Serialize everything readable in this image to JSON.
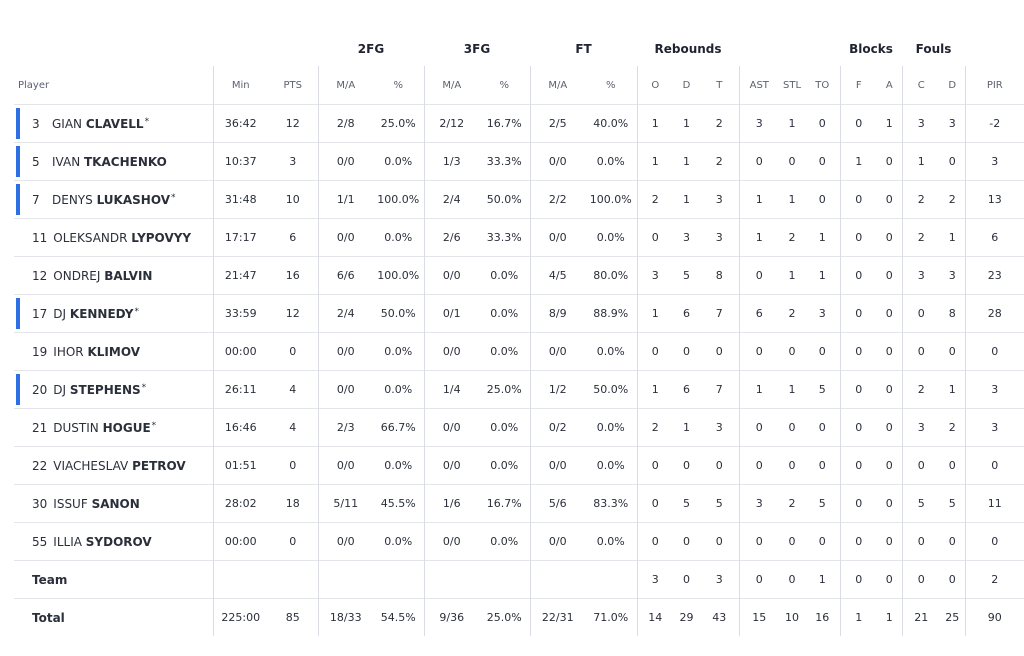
{
  "header": {
    "groups": {
      "fg2": "2FG",
      "fg3": "3FG",
      "ft": "FT",
      "rebounds": "Rebounds",
      "blocks": "Blocks",
      "fouls": "Fouls"
    },
    "sub": {
      "player": "Player",
      "min": "Min",
      "pts": "PTS",
      "fg2_ma": "M/A",
      "fg2_pct": "%",
      "fg3_ma": "M/A",
      "fg3_pct": "%",
      "ft_ma": "M/A",
      "ft_pct": "%",
      "reb_o": "O",
      "reb_d": "D",
      "reb_t": "T",
      "ast": "AST",
      "stl": "STL",
      "to": "TO",
      "blk_f": "F",
      "blk_a": "A",
      "foul_c": "C",
      "foul_d": "D",
      "pir": "PIR"
    }
  },
  "accent_color": "#2f6fe4",
  "players": [
    {
      "num": "3",
      "first": "GIAN",
      "last": "CLAVELL",
      "star": "*",
      "starter": true,
      "min": "36:42",
      "pts": "12",
      "fg2_ma": "2/8",
      "fg2_pct": "25.0%",
      "fg3_ma": "2/12",
      "fg3_pct": "16.7%",
      "ft_ma": "2/5",
      "ft_pct": "40.0%",
      "reb_o": "1",
      "reb_d": "1",
      "reb_t": "2",
      "ast": "3",
      "stl": "1",
      "to": "0",
      "blk_f": "0",
      "blk_a": "1",
      "foul_c": "3",
      "foul_d": "3",
      "pir": "-2"
    },
    {
      "num": "5",
      "first": "IVAN",
      "last": "TKACHENKO",
      "star": "",
      "starter": true,
      "min": "10:37",
      "pts": "3",
      "fg2_ma": "0/0",
      "fg2_pct": "0.0%",
      "fg3_ma": "1/3",
      "fg3_pct": "33.3%",
      "ft_ma": "0/0",
      "ft_pct": "0.0%",
      "reb_o": "1",
      "reb_d": "1",
      "reb_t": "2",
      "ast": "0",
      "stl": "0",
      "to": "0",
      "blk_f": "1",
      "blk_a": "0",
      "foul_c": "1",
      "foul_d": "0",
      "pir": "3"
    },
    {
      "num": "7",
      "first": "DENYS",
      "last": "LUKASHOV",
      "star": "*",
      "starter": true,
      "min": "31:48",
      "pts": "10",
      "fg2_ma": "1/1",
      "fg2_pct": "100.0%",
      "fg3_ma": "2/4",
      "fg3_pct": "50.0%",
      "ft_ma": "2/2",
      "ft_pct": "100.0%",
      "reb_o": "2",
      "reb_d": "1",
      "reb_t": "3",
      "ast": "1",
      "stl": "1",
      "to": "0",
      "blk_f": "0",
      "blk_a": "0",
      "foul_c": "2",
      "foul_d": "2",
      "pir": "13"
    },
    {
      "num": "11",
      "first": "OLEKSANDR",
      "last": "LYPOVYY",
      "star": "",
      "starter": false,
      "min": "17:17",
      "pts": "6",
      "fg2_ma": "0/0",
      "fg2_pct": "0.0%",
      "fg3_ma": "2/6",
      "fg3_pct": "33.3%",
      "ft_ma": "0/0",
      "ft_pct": "0.0%",
      "reb_o": "0",
      "reb_d": "3",
      "reb_t": "3",
      "ast": "1",
      "stl": "2",
      "to": "1",
      "blk_f": "0",
      "blk_a": "0",
      "foul_c": "2",
      "foul_d": "1",
      "pir": "6"
    },
    {
      "num": "12",
      "first": "ONDREJ",
      "last": "BALVIN",
      "star": "",
      "starter": false,
      "min": "21:47",
      "pts": "16",
      "fg2_ma": "6/6",
      "fg2_pct": "100.0%",
      "fg3_ma": "0/0",
      "fg3_pct": "0.0%",
      "ft_ma": "4/5",
      "ft_pct": "80.0%",
      "reb_o": "3",
      "reb_d": "5",
      "reb_t": "8",
      "ast": "0",
      "stl": "1",
      "to": "1",
      "blk_f": "0",
      "blk_a": "0",
      "foul_c": "3",
      "foul_d": "3",
      "pir": "23"
    },
    {
      "num": "17",
      "first": "DJ",
      "last": "KENNEDY",
      "star": "*",
      "starter": true,
      "min": "33:59",
      "pts": "12",
      "fg2_ma": "2/4",
      "fg2_pct": "50.0%",
      "fg3_ma": "0/1",
      "fg3_pct": "0.0%",
      "ft_ma": "8/9",
      "ft_pct": "88.9%",
      "reb_o": "1",
      "reb_d": "6",
      "reb_t": "7",
      "ast": "6",
      "stl": "2",
      "to": "3",
      "blk_f": "0",
      "blk_a": "0",
      "foul_c": "0",
      "foul_d": "8",
      "pir": "28"
    },
    {
      "num": "19",
      "first": "IHOR",
      "last": "KLIMOV",
      "star": "",
      "starter": false,
      "min": "00:00",
      "pts": "0",
      "fg2_ma": "0/0",
      "fg2_pct": "0.0%",
      "fg3_ma": "0/0",
      "fg3_pct": "0.0%",
      "ft_ma": "0/0",
      "ft_pct": "0.0%",
      "reb_o": "0",
      "reb_d": "0",
      "reb_t": "0",
      "ast": "0",
      "stl": "0",
      "to": "0",
      "blk_f": "0",
      "blk_a": "0",
      "foul_c": "0",
      "foul_d": "0",
      "pir": "0"
    },
    {
      "num": "20",
      "first": "DJ",
      "last": "STEPHENS",
      "star": "*",
      "starter": true,
      "min": "26:11",
      "pts": "4",
      "fg2_ma": "0/0",
      "fg2_pct": "0.0%",
      "fg3_ma": "1/4",
      "fg3_pct": "25.0%",
      "ft_ma": "1/2",
      "ft_pct": "50.0%",
      "reb_o": "1",
      "reb_d": "6",
      "reb_t": "7",
      "ast": "1",
      "stl": "1",
      "to": "5",
      "blk_f": "0",
      "blk_a": "0",
      "foul_c": "2",
      "foul_d": "1",
      "pir": "3"
    },
    {
      "num": "21",
      "first": "DUSTIN",
      "last": "HOGUE",
      "star": "*",
      "starter": false,
      "min": "16:46",
      "pts": "4",
      "fg2_ma": "2/3",
      "fg2_pct": "66.7%",
      "fg3_ma": "0/0",
      "fg3_pct": "0.0%",
      "ft_ma": "0/2",
      "ft_pct": "0.0%",
      "reb_o": "2",
      "reb_d": "1",
      "reb_t": "3",
      "ast": "0",
      "stl": "0",
      "to": "0",
      "blk_f": "0",
      "blk_a": "0",
      "foul_c": "3",
      "foul_d": "2",
      "pir": "3"
    },
    {
      "num": "22",
      "first": "VIACHESLAV",
      "last": "PETROV",
      "star": "",
      "starter": false,
      "min": "01:51",
      "pts": "0",
      "fg2_ma": "0/0",
      "fg2_pct": "0.0%",
      "fg3_ma": "0/0",
      "fg3_pct": "0.0%",
      "ft_ma": "0/0",
      "ft_pct": "0.0%",
      "reb_o": "0",
      "reb_d": "0",
      "reb_t": "0",
      "ast": "0",
      "stl": "0",
      "to": "0",
      "blk_f": "0",
      "blk_a": "0",
      "foul_c": "0",
      "foul_d": "0",
      "pir": "0"
    },
    {
      "num": "30",
      "first": "ISSUF",
      "last": "SANON",
      "star": "",
      "starter": false,
      "min": "28:02",
      "pts": "18",
      "fg2_ma": "5/11",
      "fg2_pct": "45.5%",
      "fg3_ma": "1/6",
      "fg3_pct": "16.7%",
      "ft_ma": "5/6",
      "ft_pct": "83.3%",
      "reb_o": "0",
      "reb_d": "5",
      "reb_t": "5",
      "ast": "3",
      "stl": "2",
      "to": "5",
      "blk_f": "0",
      "blk_a": "0",
      "foul_c": "5",
      "foul_d": "5",
      "pir": "11"
    },
    {
      "num": "55",
      "first": "ILLIA",
      "last": "SYDOROV",
      "star": "",
      "starter": false,
      "min": "00:00",
      "pts": "0",
      "fg2_ma": "0/0",
      "fg2_pct": "0.0%",
      "fg3_ma": "0/0",
      "fg3_pct": "0.0%",
      "ft_ma": "0/0",
      "ft_pct": "0.0%",
      "reb_o": "0",
      "reb_d": "0",
      "reb_t": "0",
      "ast": "0",
      "stl": "0",
      "to": "0",
      "blk_f": "0",
      "blk_a": "0",
      "foul_c": "0",
      "foul_d": "0",
      "pir": "0"
    }
  ],
  "team": {
    "label": "Team",
    "min": "",
    "pts": "",
    "fg2_ma": "",
    "fg2_pct": "",
    "fg3_ma": "",
    "fg3_pct": "",
    "ft_ma": "",
    "ft_pct": "",
    "reb_o": "3",
    "reb_d": "0",
    "reb_t": "3",
    "ast": "0",
    "stl": "0",
    "to": "1",
    "blk_f": "0",
    "blk_a": "0",
    "foul_c": "0",
    "foul_d": "0",
    "pir": "2"
  },
  "total": {
    "label": "Total",
    "min": "225:00",
    "pts": "85",
    "fg2_ma": "18/33",
    "fg2_pct": "54.5%",
    "fg3_ma": "9/36",
    "fg3_pct": "25.0%",
    "ft_ma": "22/31",
    "ft_pct": "71.0%",
    "reb_o": "14",
    "reb_d": "29",
    "reb_t": "43",
    "ast": "15",
    "stl": "10",
    "to": "16",
    "blk_f": "1",
    "blk_a": "1",
    "foul_c": "21",
    "foul_d": "25",
    "pir": "90"
  }
}
